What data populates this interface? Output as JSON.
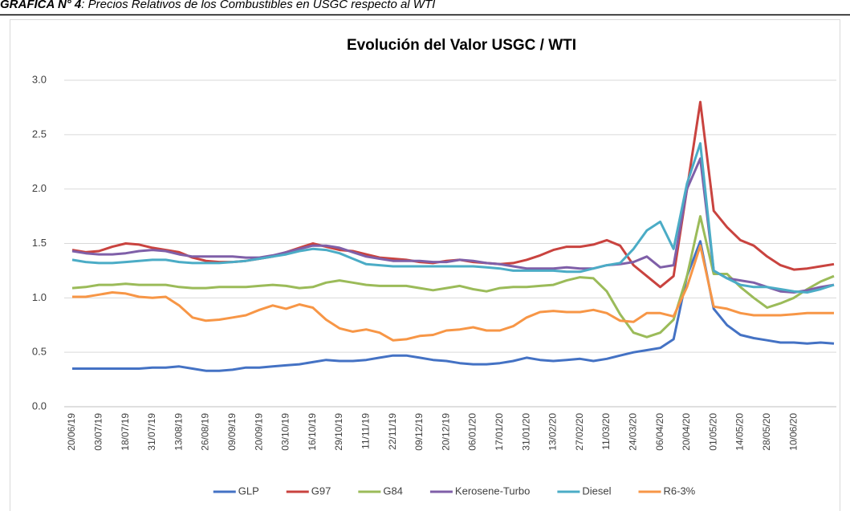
{
  "caption": {
    "label": "GRÁFICA N° 4",
    "text": ": Precios Relativos de los Combustibles en USGC respecto al WTI"
  },
  "chart_data": {
    "type": "line",
    "title": "Evolución del Valor USGC / WTI",
    "categories": [
      "20/06/19",
      null,
      "03/07/19",
      null,
      "18/07/19",
      null,
      "31/07/19",
      null,
      "13/08/19",
      null,
      "26/08/19",
      null,
      "09/09/19",
      null,
      "20/09/19",
      null,
      "03/10/19",
      null,
      "16/10/19",
      null,
      "29/10/19",
      null,
      "11/11/19",
      null,
      "22/11/19",
      null,
      "09/12/19",
      null,
      "20/12/19",
      null,
      "06/01/20",
      null,
      "17/01/20",
      null,
      "31/01/20",
      null,
      "13/02/20",
      null,
      "27/02/20",
      null,
      "11/03/20",
      null,
      "24/03/20",
      null,
      "06/04/20",
      null,
      "20/04/20",
      null,
      "01/05/20",
      null,
      "14/05/20",
      null,
      "28/05/20",
      null,
      "10/06/20",
      null,
      null,
      null
    ],
    "series": [
      {
        "name": "GLP",
        "color": "#4472c4",
        "values": [
          0.35,
          0.35,
          0.35,
          0.35,
          0.35,
          0.35,
          0.36,
          0.36,
          0.37,
          0.35,
          0.33,
          0.33,
          0.34,
          0.36,
          0.36,
          0.37,
          0.38,
          0.39,
          0.41,
          0.43,
          0.42,
          0.42,
          0.43,
          0.45,
          0.47,
          0.47,
          0.45,
          0.43,
          0.42,
          0.4,
          0.39,
          0.39,
          0.4,
          0.42,
          0.45,
          0.43,
          0.42,
          0.43,
          0.44,
          0.42,
          0.44,
          0.47,
          0.5,
          0.52,
          0.54,
          0.62,
          1.2,
          1.52,
          0.9,
          0.75,
          0.66,
          0.63,
          0.61,
          0.59,
          0.59,
          0.58,
          0.59,
          0.58
        ]
      },
      {
        "name": "G97",
        "color": "#c9433f",
        "values": [
          1.44,
          1.42,
          1.43,
          1.47,
          1.5,
          1.49,
          1.46,
          1.44,
          1.42,
          1.37,
          1.34,
          1.33,
          1.33,
          1.34,
          1.36,
          1.38,
          1.42,
          1.46,
          1.5,
          1.47,
          1.44,
          1.43,
          1.4,
          1.37,
          1.36,
          1.35,
          1.33,
          1.32,
          1.34,
          1.35,
          1.33,
          1.32,
          1.31,
          1.32,
          1.35,
          1.39,
          1.44,
          1.47,
          1.47,
          1.49,
          1.53,
          1.48,
          1.3,
          1.2,
          1.1,
          1.2,
          2.0,
          2.8,
          1.8,
          1.65,
          1.53,
          1.48,
          1.38,
          1.3,
          1.26,
          1.27,
          1.29,
          1.31
        ]
      },
      {
        "name": "G84",
        "color": "#9bbb59",
        "values": [
          1.09,
          1.1,
          1.12,
          1.12,
          1.13,
          1.12,
          1.12,
          1.12,
          1.1,
          1.09,
          1.09,
          1.1,
          1.1,
          1.1,
          1.11,
          1.12,
          1.11,
          1.09,
          1.1,
          1.14,
          1.16,
          1.14,
          1.12,
          1.11,
          1.11,
          1.11,
          1.09,
          1.07,
          1.09,
          1.11,
          1.08,
          1.06,
          1.09,
          1.1,
          1.1,
          1.11,
          1.12,
          1.16,
          1.19,
          1.18,
          1.06,
          0.85,
          0.68,
          0.64,
          0.68,
          0.8,
          1.2,
          1.75,
          1.22,
          1.22,
          1.1,
          1.0,
          0.91,
          0.95,
          1.0,
          1.08,
          1.15,
          1.2
        ]
      },
      {
        "name": "Kerosene-Turbo",
        "color": "#7f5fa8",
        "values": [
          1.43,
          1.41,
          1.4,
          1.4,
          1.41,
          1.43,
          1.44,
          1.43,
          1.4,
          1.38,
          1.38,
          1.38,
          1.38,
          1.37,
          1.37,
          1.39,
          1.42,
          1.45,
          1.48,
          1.48,
          1.46,
          1.42,
          1.38,
          1.36,
          1.34,
          1.34,
          1.34,
          1.33,
          1.33,
          1.35,
          1.34,
          1.32,
          1.31,
          1.29,
          1.27,
          1.27,
          1.27,
          1.28,
          1.27,
          1.27,
          1.3,
          1.31,
          1.33,
          1.38,
          1.28,
          1.3,
          2.0,
          2.28,
          1.25,
          1.18,
          1.16,
          1.14,
          1.1,
          1.06,
          1.05,
          1.07,
          1.1,
          1.12
        ]
      },
      {
        "name": "Diesel",
        "color": "#4bacc6",
        "values": [
          1.35,
          1.33,
          1.32,
          1.32,
          1.33,
          1.34,
          1.35,
          1.35,
          1.33,
          1.32,
          1.32,
          1.32,
          1.33,
          1.34,
          1.36,
          1.38,
          1.4,
          1.43,
          1.45,
          1.44,
          1.41,
          1.36,
          1.31,
          1.3,
          1.29,
          1.29,
          1.29,
          1.29,
          1.29,
          1.29,
          1.29,
          1.28,
          1.27,
          1.25,
          1.25,
          1.25,
          1.25,
          1.24,
          1.24,
          1.27,
          1.3,
          1.32,
          1.45,
          1.62,
          1.7,
          1.45,
          2.05,
          2.42,
          1.25,
          1.18,
          1.12,
          1.1,
          1.1,
          1.08,
          1.06,
          1.05,
          1.08,
          1.12
        ]
      },
      {
        "name": "R6-3%",
        "color": "#f79646",
        "values": [
          1.01,
          1.01,
          1.03,
          1.05,
          1.04,
          1.01,
          1.0,
          1.01,
          0.93,
          0.82,
          0.79,
          0.8,
          0.82,
          0.84,
          0.89,
          0.93,
          0.9,
          0.94,
          0.91,
          0.8,
          0.72,
          0.69,
          0.71,
          0.68,
          0.61,
          0.62,
          0.65,
          0.66,
          0.7,
          0.71,
          0.73,
          0.7,
          0.7,
          0.74,
          0.82,
          0.87,
          0.88,
          0.87,
          0.87,
          0.89,
          0.86,
          0.79,
          0.78,
          0.86,
          0.86,
          0.83,
          1.1,
          1.48,
          0.92,
          0.9,
          0.86,
          0.84,
          0.84,
          0.84,
          0.85,
          0.86,
          0.86,
          0.86
        ]
      }
    ],
    "ylim": [
      0,
      3
    ],
    "yticks": [
      {
        "value": 0,
        "label": "0.0"
      },
      0.5,
      {
        "value": 1,
        "label": "1.0"
      },
      1.5,
      {
        "value": 2,
        "label": "2.0"
      },
      2.5,
      {
        "value": 3,
        "label": "3.0"
      }
    ],
    "grid": true,
    "legend": "bottom"
  }
}
